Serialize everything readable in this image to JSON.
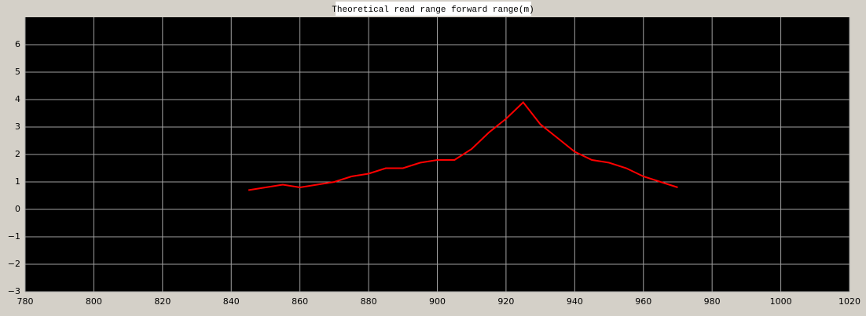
{
  "chart_data": {
    "type": "line",
    "title": "Theoretical read range forward range(m)",
    "x": [
      845,
      850,
      855,
      860,
      865,
      870,
      875,
      880,
      885,
      890,
      895,
      900,
      905,
      910,
      915,
      920,
      925,
      930,
      935,
      940,
      945,
      950,
      955,
      960,
      965,
      970
    ],
    "series": [
      {
        "color": "#ff0000",
        "values": [
          0.7,
          0.8,
          0.9,
          0.8,
          0.9,
          1.0,
          1.2,
          1.3,
          1.5,
          1.5,
          1.7,
          1.8,
          1.8,
          2.2,
          2.8,
          3.3,
          3.9,
          3.1,
          2.6,
          2.1,
          1.8,
          1.7,
          1.5,
          1.2,
          1.0,
          0.8
        ]
      }
    ],
    "xlim": [
      780,
      1020
    ],
    "xticks": [
      780,
      800,
      820,
      840,
      860,
      880,
      900,
      920,
      940,
      960,
      980,
      1000,
      1020
    ],
    "ylim": [
      -3,
      7
    ],
    "yticks": [
      {
        "value": -3,
        "label": "−3"
      },
      {
        "value": -2,
        "label": "−2"
      },
      {
        "value": -1,
        "label": "−1"
      },
      0,
      1,
      2,
      3,
      4,
      5,
      6
    ],
    "grid": true
  }
}
